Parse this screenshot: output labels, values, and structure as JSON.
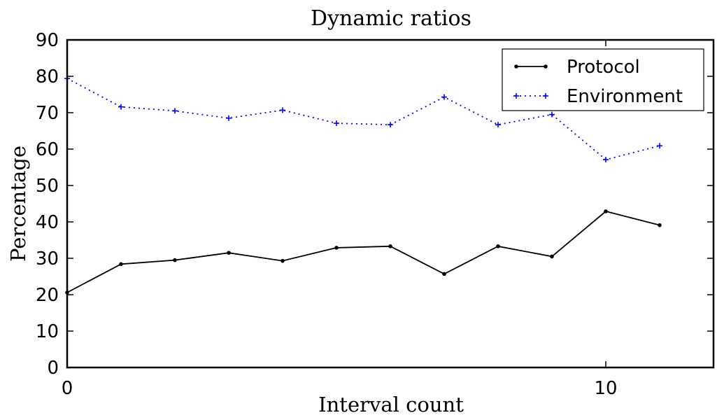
{
  "chart_data": {
    "type": "line",
    "title": "Dynamic ratios",
    "xlabel": "Interval count",
    "ylabel": "Percentage",
    "xlim": [
      0,
      12
    ],
    "ylim": [
      0,
      90
    ],
    "x_ticks": [
      "0",
      "10"
    ],
    "x_tick_values": [
      0,
      10
    ],
    "y_ticks": [
      "0",
      "10",
      "20",
      "30",
      "40",
      "50",
      "60",
      "70",
      "80",
      "90"
    ],
    "y_tick_values": [
      0,
      10,
      20,
      30,
      40,
      50,
      60,
      70,
      80,
      90
    ],
    "grid": false,
    "legend_position": "top-right",
    "x": [
      0,
      1,
      2,
      3,
      4,
      5,
      6,
      7,
      8,
      9,
      10,
      11
    ],
    "series": [
      {
        "name": "Protocol",
        "color": "#000000",
        "line_style": "solid",
        "marker": "dot",
        "values": [
          20.6,
          28.4,
          29.5,
          31.5,
          29.3,
          32.9,
          33.3,
          25.7,
          33.3,
          30.5,
          42.9,
          39.1
        ]
      },
      {
        "name": "Environment",
        "color": "#0000ff",
        "line_style": "dotted",
        "marker": "plus",
        "values": [
          79.4,
          71.6,
          70.5,
          68.5,
          70.7,
          67.1,
          66.7,
          74.3,
          66.7,
          69.5,
          57.1,
          60.9
        ]
      }
    ]
  }
}
